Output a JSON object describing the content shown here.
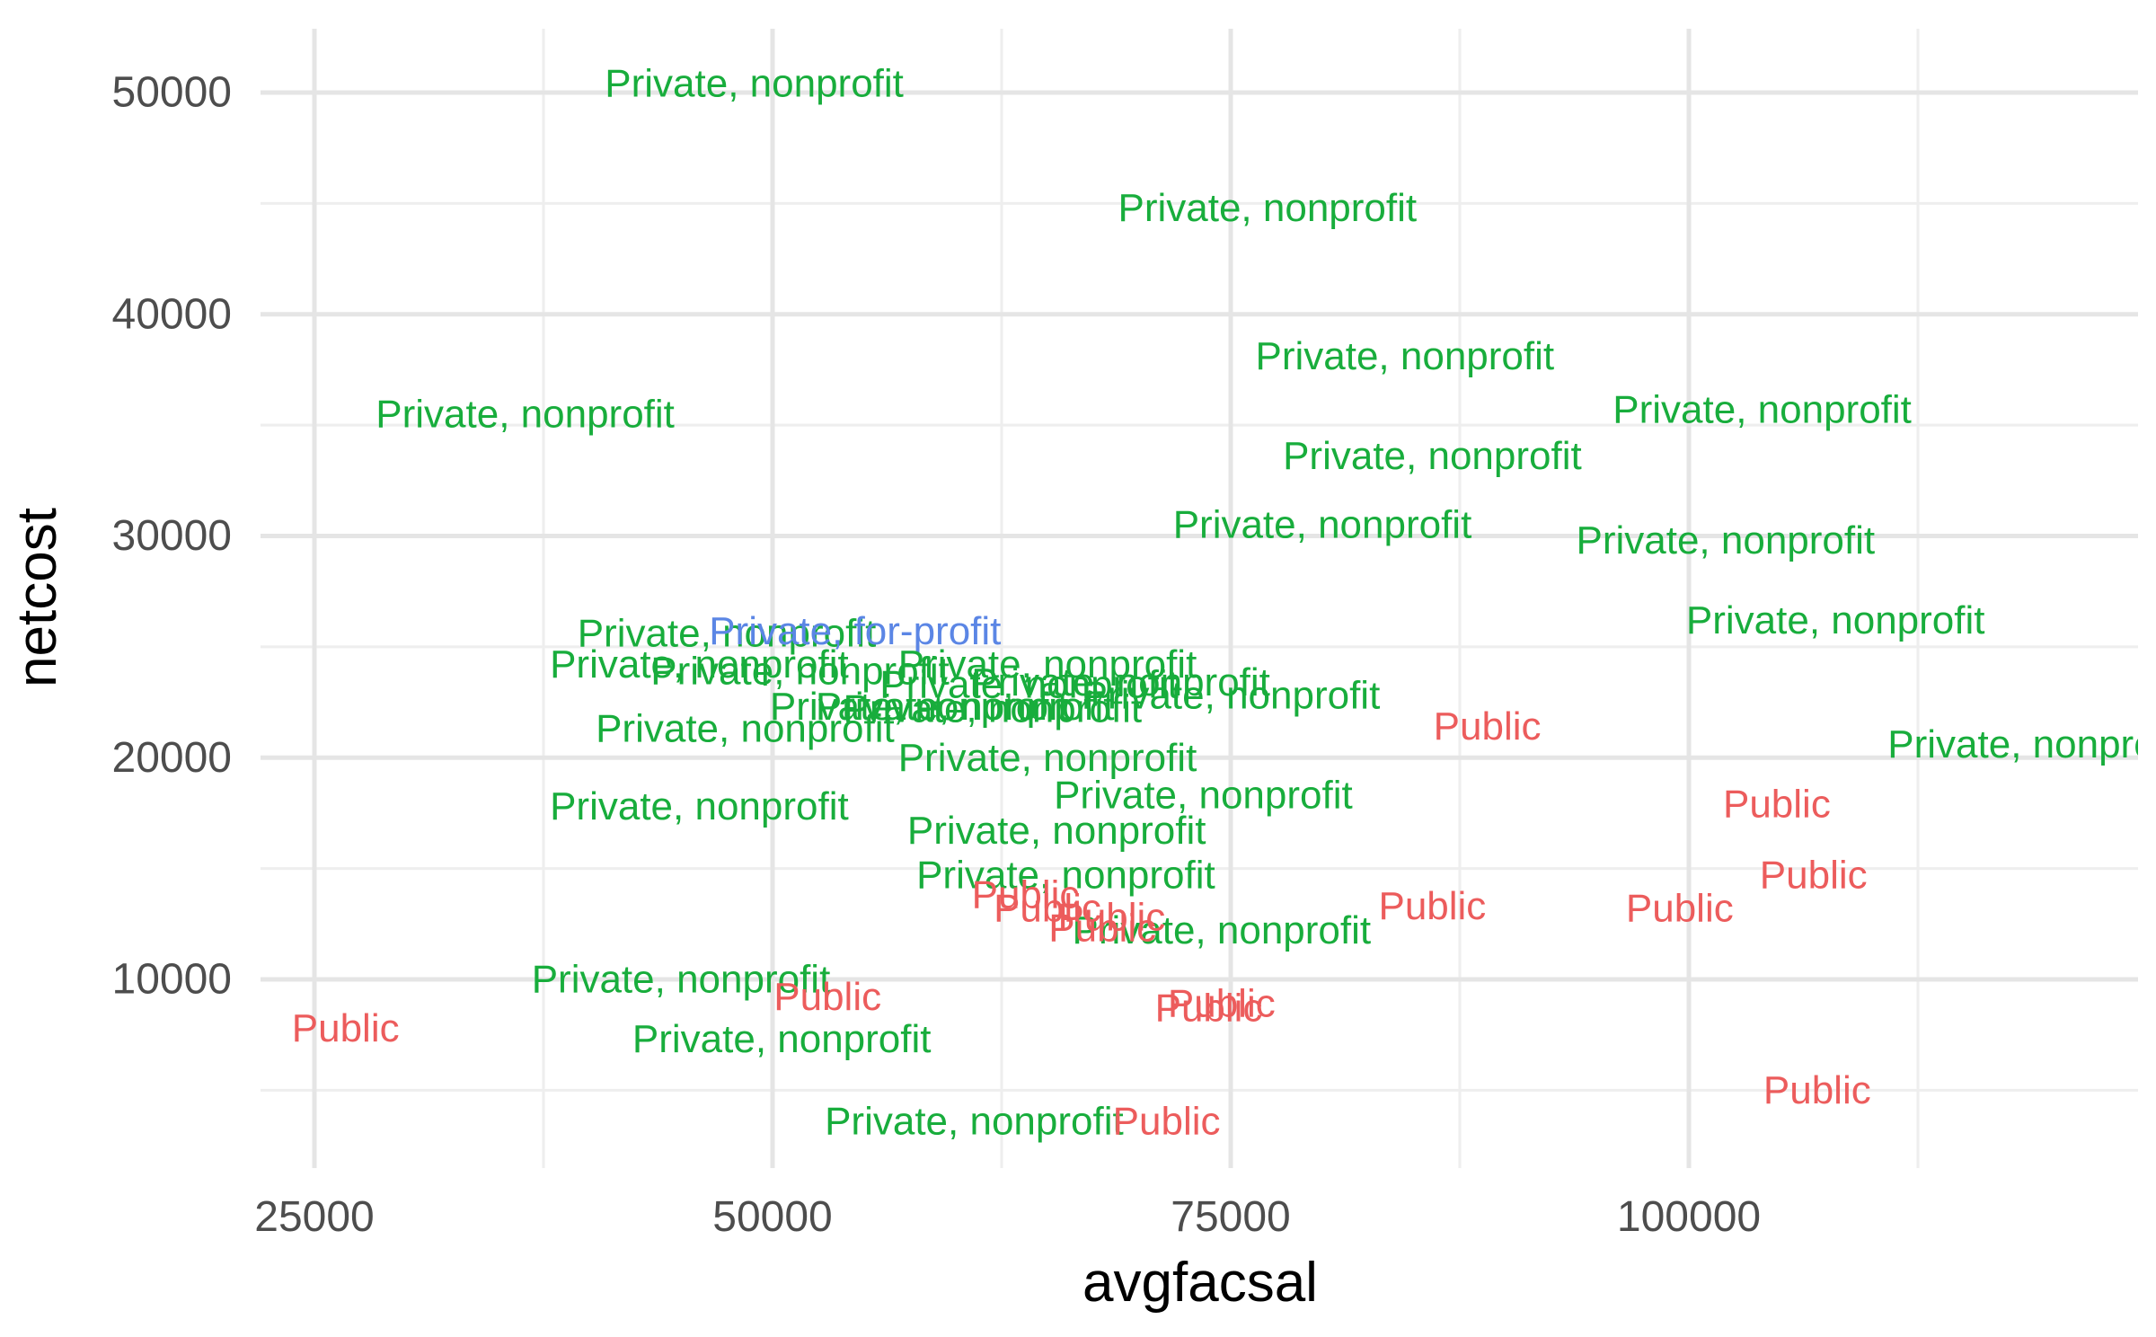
{
  "chart_data": {
    "type": "scatter",
    "xlabel": "avgfacsal",
    "ylabel": "netcost",
    "xlim": [
      22000,
      120000
    ],
    "ylim": [
      1500,
      52500
    ],
    "x_ticks": [
      25000,
      50000,
      75000,
      100000
    ],
    "x_tick_labels": [
      "25000",
      "50000",
      "75000",
      "100000"
    ],
    "y_ticks": [
      10000,
      20000,
      30000,
      40000,
      50000
    ],
    "y_tick_labels": [
      "10000",
      "20000",
      "30000",
      "40000",
      "50000"
    ],
    "x_minor_ticks": [
      37500,
      62500,
      87500,
      112500
    ],
    "y_minor_ticks": [
      5000,
      15000,
      25000,
      35000,
      45000
    ],
    "grid": true,
    "legend": "none",
    "colors": {
      "Private, nonprofit": "#18ad3c",
      "Private, for-profit": "#5b86e5",
      "Public": "#ec5c5c"
    },
    "points": [
      {
        "x": 49000,
        "y": 50400,
        "label": "Private, nonprofit"
      },
      {
        "x": 77000,
        "y": 44800,
        "label": "Private, nonprofit"
      },
      {
        "x": 84500,
        "y": 38100,
        "label": "Private, nonprofit"
      },
      {
        "x": 36500,
        "y": 35500,
        "label": "Private, nonprofit"
      },
      {
        "x": 104000,
        "y": 35700,
        "label": "Private, nonprofit"
      },
      {
        "x": 86000,
        "y": 33600,
        "label": "Private, nonprofit"
      },
      {
        "x": 80000,
        "y": 30500,
        "label": "Private, nonprofit"
      },
      {
        "x": 102000,
        "y": 29800,
        "label": "Private, nonprofit"
      },
      {
        "x": 108000,
        "y": 26200,
        "label": "Private, nonprofit"
      },
      {
        "x": 47500,
        "y": 25600,
        "label": "Private, nonprofit"
      },
      {
        "x": 54500,
        "y": 25700,
        "label": "Private, for-profit"
      },
      {
        "x": 46000,
        "y": 24200,
        "label": "Private, nonprofit"
      },
      {
        "x": 51500,
        "y": 23900,
        "label": "Private, nonprofit"
      },
      {
        "x": 65000,
        "y": 24200,
        "label": "Private, nonprofit"
      },
      {
        "x": 64000,
        "y": 23300,
        "label": "Private, nonprofit"
      },
      {
        "x": 69000,
        "y": 23400,
        "label": "Private, nonprofit"
      },
      {
        "x": 75000,
        "y": 22800,
        "label": "Private, nonprofit"
      },
      {
        "x": 58000,
        "y": 22300,
        "label": "Private, nonprofit"
      },
      {
        "x": 60500,
        "y": 22300,
        "label": "Private, nonprofit"
      },
      {
        "x": 62000,
        "y": 22200,
        "label": "Private, nonprofit"
      },
      {
        "x": 48500,
        "y": 21300,
        "label": "Private, nonprofit"
      },
      {
        "x": 119000,
        "y": 20600,
        "label": "Private, nonprofit"
      },
      {
        "x": 65000,
        "y": 20000,
        "label": "Private, nonprofit"
      },
      {
        "x": 73500,
        "y": 18300,
        "label": "Private, nonprofit"
      },
      {
        "x": 46000,
        "y": 17800,
        "label": "Private, nonprofit"
      },
      {
        "x": 65500,
        "y": 16700,
        "label": "Private, nonprofit"
      },
      {
        "x": 66000,
        "y": 14700,
        "label": "Private, nonprofit"
      },
      {
        "x": 74500,
        "y": 12200,
        "label": "Private, nonprofit"
      },
      {
        "x": 45000,
        "y": 10000,
        "label": "Private, nonprofit"
      },
      {
        "x": 50500,
        "y": 7300,
        "label": "Private, nonprofit"
      },
      {
        "x": 61000,
        "y": 3600,
        "label": "Private, nonprofit"
      },
      {
        "x": 89000,
        "y": 21400,
        "label": "Public"
      },
      {
        "x": 104800,
        "y": 17900,
        "label": "Public"
      },
      {
        "x": 106800,
        "y": 14700,
        "label": "Public"
      },
      {
        "x": 86000,
        "y": 13300,
        "label": "Public"
      },
      {
        "x": 99500,
        "y": 13200,
        "label": "Public"
      },
      {
        "x": 63800,
        "y": 13800,
        "label": "Public"
      },
      {
        "x": 65000,
        "y": 13200,
        "label": "Public"
      },
      {
        "x": 68500,
        "y": 12800,
        "label": "Public"
      },
      {
        "x": 68000,
        "y": 12300,
        "label": "Public"
      },
      {
        "x": 53000,
        "y": 9200,
        "label": "Public"
      },
      {
        "x": 73800,
        "y": 8700,
        "label": "Public"
      },
      {
        "x": 74500,
        "y": 8900,
        "label": "Public"
      },
      {
        "x": 26700,
        "y": 7800,
        "label": "Public"
      },
      {
        "x": 107000,
        "y": 5000,
        "label": "Public"
      },
      {
        "x": 71500,
        "y": 3600,
        "label": "Public"
      }
    ]
  }
}
